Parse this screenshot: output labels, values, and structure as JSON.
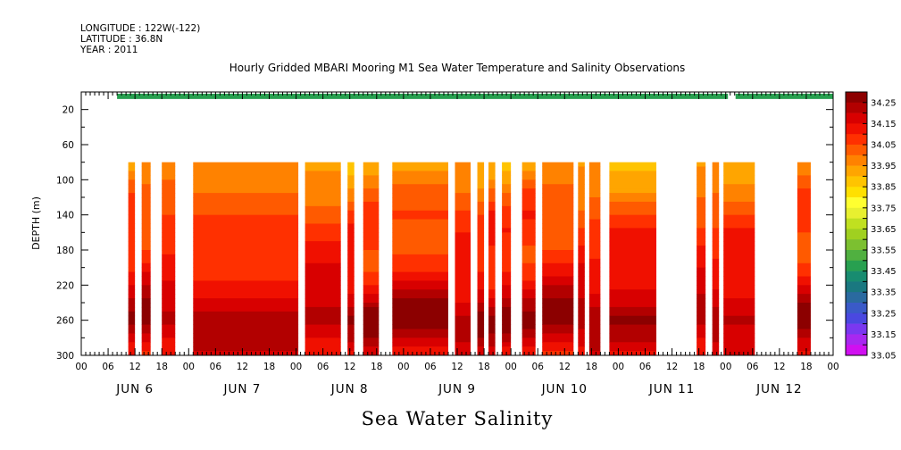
{
  "header": {
    "longitude": "LONGITUDE : 122W(-122)",
    "latitude": "LATITUDE : 36.8N",
    "year": "YEAR : 2011",
    "title": "Hourly Gridded MBARI Mooring M1 Sea Water Temperature and Salinity Observations"
  },
  "footer_title": "Sea Water Salinity",
  "chart_data": {
    "type": "heatmap",
    "title": "Hourly Gridded MBARI Mooring M1 Sea Water Temperature and Salinity Observations",
    "xlabel": "",
    "ylabel": "DEPTH (m)",
    "y_reversed": true,
    "ylim": [
      0,
      300
    ],
    "y_ticks": [
      20,
      60,
      100,
      140,
      180,
      220,
      260,
      300
    ],
    "x_range_hours": [
      0,
      168
    ],
    "x_tick_labels": [
      "00",
      "06",
      "12",
      "18",
      "00",
      "06",
      "12",
      "18",
      "00",
      "06",
      "12",
      "18",
      "00",
      "06",
      "12",
      "18",
      "00",
      "06",
      "12",
      "18",
      "00",
      "06",
      "12",
      "18",
      "00",
      "06",
      "12",
      "18",
      "00"
    ],
    "day_labels": [
      "JUN  6",
      "JUN  7",
      "JUN  8",
      "JUN  9",
      "JUN 10",
      "JUN 11",
      "JUN 12"
    ],
    "colorbar": {
      "labels": [
        "34.25",
        "34.15",
        "34.05",
        "33.95",
        "33.85",
        "33.75",
        "33.65",
        "33.55",
        "33.45",
        "33.35",
        "33.25",
        "33.15",
        "33.05"
      ],
      "colors": [
        "#8c0000",
        "#b20000",
        "#d80000",
        "#f01000",
        "#ff3000",
        "#ff5a00",
        "#ff8200",
        "#ffa500",
        "#ffc400",
        "#ffe000",
        "#ffff30",
        "#e8f030",
        "#c0e020",
        "#a0d020",
        "#7cc030",
        "#50b040",
        "#28a050",
        "#188c70",
        "#1a7880",
        "#2a6aa0",
        "#3a5ac8",
        "#4a48e0",
        "#7a38f0",
        "#a828f0",
        "#d010f0"
      ]
    },
    "surface_band": {
      "depth_range": [
        2,
        8
      ],
      "value": 33.45,
      "start_hour": 8,
      "gap_hours": [
        [
          144.5,
          146.2
        ]
      ]
    },
    "depth_profile": {
      "depths": [
        80,
        100,
        120,
        140,
        160,
        180,
        200,
        220,
        240,
        260,
        280,
        300
      ],
      "values": [
        33.93,
        33.97,
        34.02,
        34.06,
        34.08,
        34.08,
        34.1,
        34.14,
        34.21,
        34.27,
        34.2,
        34.13
      ]
    },
    "data_segments_hours": [
      [
        10.5,
        12
      ],
      [
        13.5,
        15.5
      ],
      [
        18,
        21
      ],
      [
        25,
        48.5
      ],
      [
        50,
        58
      ],
      [
        59.5,
        61
      ],
      [
        63,
        66.5
      ],
      [
        69.5,
        82
      ],
      [
        83.5,
        87
      ],
      [
        88.5,
        90
      ],
      [
        91,
        92.5
      ],
      [
        94,
        96
      ],
      [
        98.5,
        101.5
      ],
      [
        103,
        110
      ],
      [
        111,
        112.5
      ],
      [
        113.5,
        116
      ],
      [
        118,
        128.5
      ],
      [
        137.5,
        139.5
      ],
      [
        141,
        142.5
      ],
      [
        143.5,
        150.5
      ],
      [
        160,
        163
      ]
    ]
  }
}
